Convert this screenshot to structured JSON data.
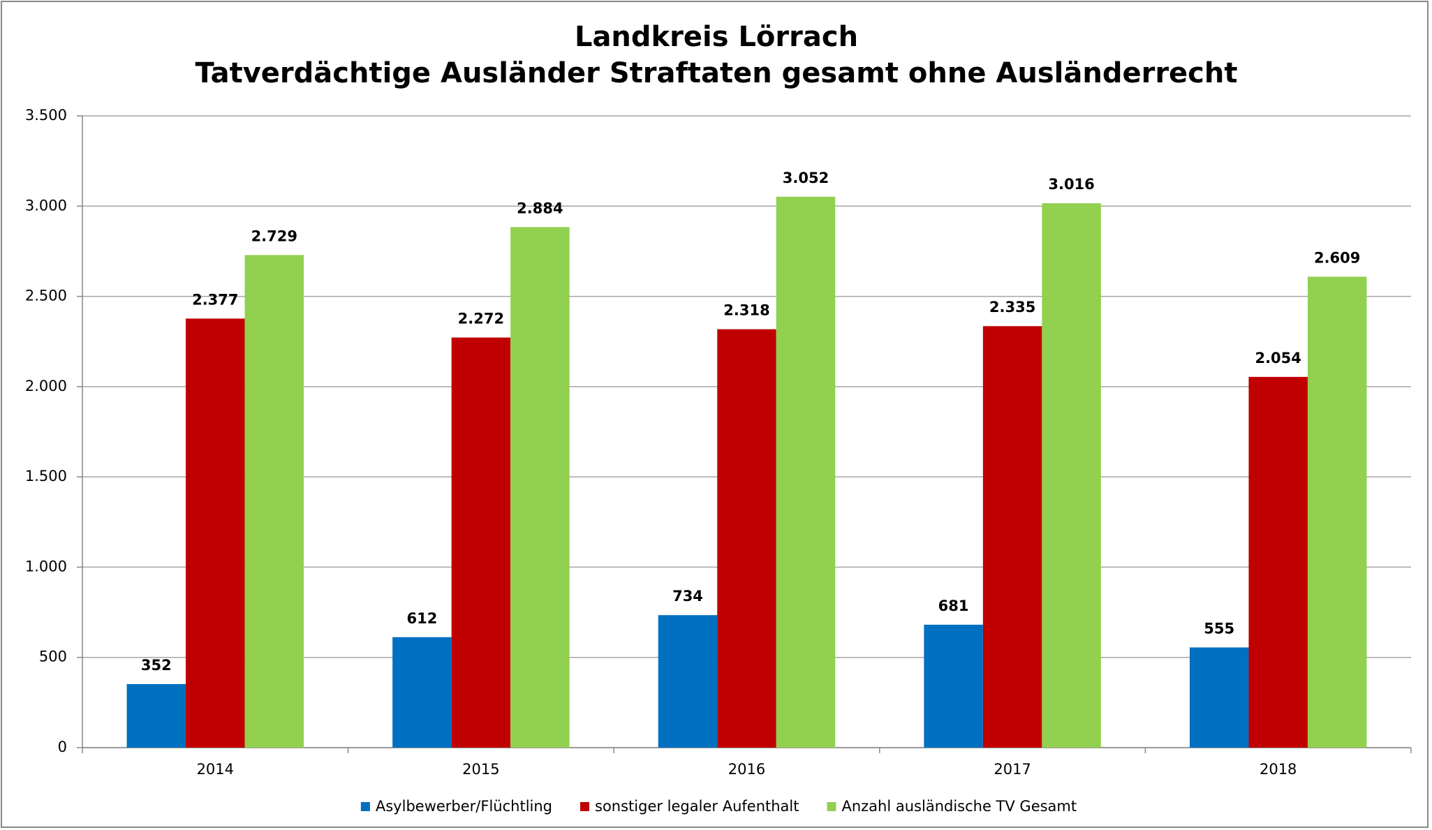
{
  "chart_data": {
    "type": "bar",
    "title": "Landkreis Lörrach",
    "subtitle": "Tatverdächtige Ausländer Straftaten gesamt ohne Ausländerrecht",
    "categories": [
      "2014",
      "2015",
      "2016",
      "2017",
      "2018"
    ],
    "series": [
      {
        "name": "Asylbewerber/Flüchtling",
        "color": "#0070c0",
        "values": [
          352,
          612,
          734,
          681,
          555
        ],
        "value_labels": [
          "352",
          "612",
          "734",
          "681",
          "555"
        ]
      },
      {
        "name": "sonstiger legaler Aufenthalt",
        "color": "#c00000",
        "values": [
          2377,
          2272,
          2318,
          2335,
          2054
        ],
        "value_labels": [
          "2.377",
          "2.272",
          "2.318",
          "2.335",
          "2.054"
        ]
      },
      {
        "name": "Anzahl ausländische TV Gesamt",
        "color": "#92d050",
        "values": [
          2729,
          2884,
          3052,
          3016,
          2609
        ],
        "value_labels": [
          "2.729",
          "2.884",
          "3.052",
          "3.016",
          "2.609"
        ]
      }
    ],
    "ylim": [
      0,
      3500
    ],
    "yticks": [
      0,
      500,
      {
        "value": 1000,
        "label": "1.000"
      },
      {
        "value": 1500,
        "label": "1.500"
      },
      {
        "value": 2000,
        "label": "2.000"
      },
      {
        "value": 2500,
        "label": "2.500"
      },
      {
        "value": 3000,
        "label": "3.000"
      },
      {
        "value": 3500,
        "label": "3.500"
      }
    ],
    "grid": true,
    "legend": "bottom"
  }
}
